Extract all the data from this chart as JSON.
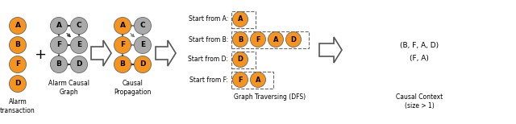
{
  "orange_color": "#F7941D",
  "gray_color": "#AAAAAA",
  "bg_color": "#FFFFFF",
  "alarm_nodes": [
    "A",
    "B",
    "F",
    "D"
  ],
  "causal_edges": [
    [
      "A",
      "C"
    ],
    [
      "A",
      "E"
    ],
    [
      "A",
      "F"
    ],
    [
      "C",
      "E"
    ],
    [
      "F",
      "E"
    ],
    [
      "B",
      "F"
    ],
    [
      "B",
      "D"
    ]
  ],
  "prop_nodes_orange": [
    "A",
    "F",
    "B",
    "D"
  ],
  "prop_nodes_gray": [
    "C",
    "E"
  ],
  "prop_edges_solid": [
    [
      "A",
      "F"
    ],
    [
      "B",
      "F"
    ],
    [
      "B",
      "D"
    ]
  ],
  "prop_edges_dashed": [
    [
      "A",
      "C"
    ],
    [
      "A",
      "E"
    ],
    [
      "C",
      "E"
    ],
    [
      "F",
      "E"
    ]
  ],
  "dfs_rows": [
    {
      "label": "Start from A:",
      "nodes": [
        "A"
      ]
    },
    {
      "label": "Start from B:",
      "nodes": [
        "B",
        "F",
        "A",
        "D"
      ]
    },
    {
      "label": "Start from D:",
      "nodes": [
        "D"
      ]
    },
    {
      "label": "Start from F:",
      "nodes": [
        "F",
        "A"
      ]
    }
  ],
  "causal_context": [
    "(B, F, A, D)",
    "(F, A)"
  ],
  "label_alarm": "Alarm\ntransaction",
  "label_causal_graph": "Alarm Causal\nGraph",
  "label_causal_prop": "Causal\nPropagation",
  "label_dfs": "Graph Traversing (DFS)",
  "label_context": "Causal Context\n(size > 1)"
}
